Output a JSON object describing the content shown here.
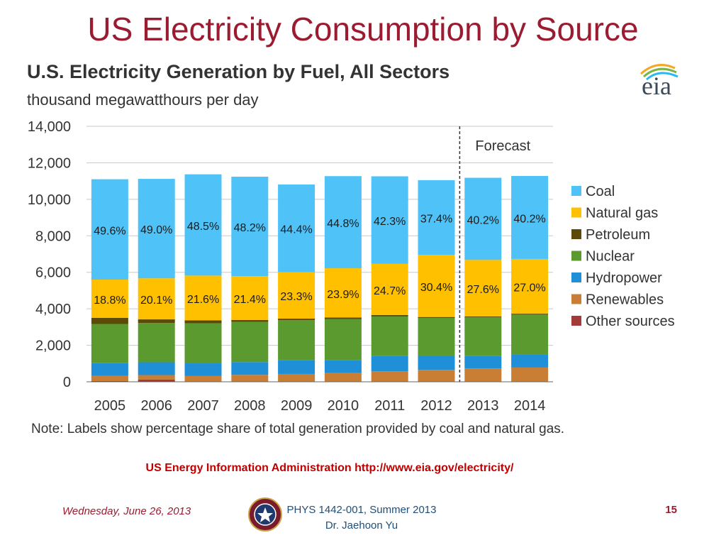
{
  "slide": {
    "title": "US Electricity Consumption by Source",
    "source_text": "US Energy Information Administration http://www.eia.gov/electricity/",
    "footer": {
      "date": "Wednesday, June 26, 2013",
      "course_line1": "PHYS 1442-001, Summer 2013",
      "course_line2": "Dr. Jaehoon Yu",
      "page_number": "15"
    },
    "logo_text": "eia",
    "logo_icon": "eia-logo-icon",
    "seal_icon": "university-seal-icon"
  },
  "chart_data": {
    "type": "bar",
    "stacked": true,
    "title": "U.S. Electricity Generation by Fuel, All Sectors",
    "subtitle": "thousand megawatthours per day",
    "categories": [
      "2005",
      "2006",
      "2007",
      "2008",
      "2009",
      "2010",
      "2011",
      "2012",
      "2013",
      "2014"
    ],
    "ylim": [
      0,
      14000
    ],
    "yticks": [
      0,
      2000,
      4000,
      6000,
      8000,
      10000,
      12000,
      14000
    ],
    "ytick_labels": [
      "0",
      "2,000",
      "4,000",
      "6,000",
      "8,000",
      "10,000",
      "12,000",
      "14,000"
    ],
    "grid": true,
    "legend_position": "right",
    "forecast_label": "Forecast",
    "forecast_start_category": "2013",
    "series": [
      {
        "name": "Other sources",
        "color": "#a33a3a",
        "values": [
          40,
          120,
          30,
          30,
          30,
          30,
          30,
          30,
          30,
          30
        ]
      },
      {
        "name": "Renewables",
        "color": "#c87f35",
        "values": [
          280,
          250,
          300,
          350,
          400,
          450,
          550,
          620,
          700,
          750
        ]
      },
      {
        "name": "Hydropower",
        "color": "#1f8fd8",
        "values": [
          700,
          700,
          680,
          700,
          750,
          700,
          850,
          750,
          700,
          700
        ]
      },
      {
        "name": "Nuclear",
        "color": "#5a9a2e",
        "values": [
          2150,
          2150,
          2200,
          2200,
          2200,
          2250,
          2150,
          2100,
          2100,
          2200
        ]
      },
      {
        "name": "Petroleum",
        "color": "#5c4a08",
        "values": [
          330,
          200,
          160,
          110,
          80,
          90,
          80,
          50,
          50,
          50
        ]
      },
      {
        "name": "Natural gas",
        "color": "#ffc000",
        "values": [
          2100,
          2250,
          2450,
          2400,
          2550,
          2700,
          2800,
          3400,
          3100,
          3000
        ]
      },
      {
        "name": "Coal",
        "color": "#4fc3f7",
        "values": [
          5500,
          5450,
          5550,
          5450,
          4800,
          5050,
          4800,
          4100,
          4500,
          4550
        ]
      }
    ],
    "coal_share_labels": [
      "49.6%",
      "49.0%",
      "48.5%",
      "48.2%",
      "44.4%",
      "44.8%",
      "42.3%",
      "37.4%",
      "40.2%",
      "40.2%"
    ],
    "gas_share_labels": [
      "18.8%",
      "20.1%",
      "21.6%",
      "21.4%",
      "23.3%",
      "23.9%",
      "24.7%",
      "30.4%",
      "27.6%",
      "27.0%"
    ],
    "legend_order": [
      "Coal",
      "Natural gas",
      "Petroleum",
      "Nuclear",
      "Hydropower",
      "Renewables",
      "Other sources"
    ],
    "note": "Note: Labels show percentage share of total generation provided by coal and natural gas."
  }
}
